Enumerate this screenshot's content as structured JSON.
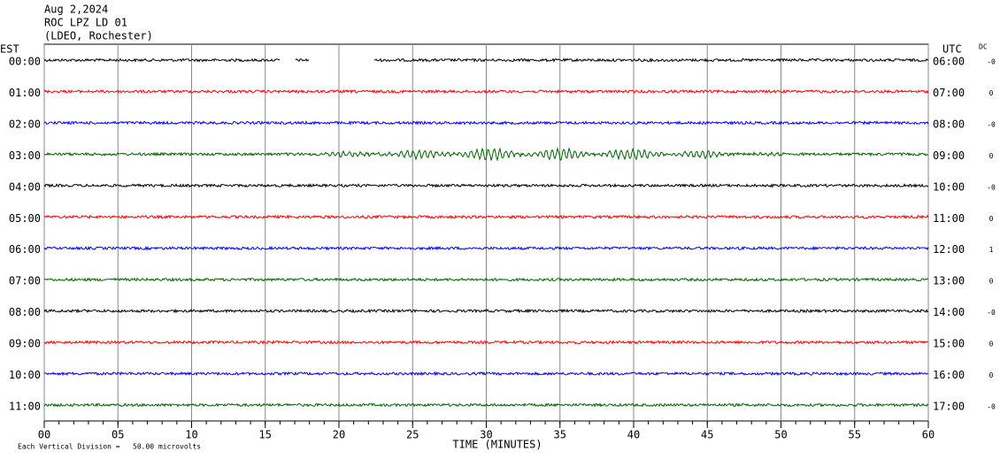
{
  "header": {
    "date": "Aug 2,2024",
    "station": "ROC LPZ LD 01",
    "network": "(LDEO, Rochester)"
  },
  "chart_data": {
    "type": "helicorder",
    "left_axis_label": "EST",
    "right_axis_label": "UTC",
    "dc_label": "DC",
    "x_label": "TIME (MINUTES)",
    "scale_note": "Each Vertical Division =   50.00 microvolts",
    "xlim": [
      0,
      60
    ],
    "xticks": [
      {
        "value": 0,
        "label": "00"
      },
      {
        "value": 5,
        "label": "05"
      },
      10,
      15,
      20,
      25,
      30,
      35,
      40,
      45,
      50,
      55,
      60
    ],
    "grid": true,
    "colors": [
      "#000000",
      "#ff0000",
      "#0000ff",
      "#006400"
    ],
    "rows": [
      {
        "est": "00:00",
        "utc": "06:00",
        "dc": "-0"
      },
      {
        "est": "01:00",
        "utc": "07:00",
        "dc": "0"
      },
      {
        "est": "02:00",
        "utc": "08:00",
        "dc": "-0"
      },
      {
        "est": "03:00",
        "utc": "09:00",
        "dc": "0"
      },
      {
        "est": "04:00",
        "utc": "10:00",
        "dc": "-0"
      },
      {
        "est": "05:00",
        "utc": "11:00",
        "dc": "0"
      },
      {
        "est": "06:00",
        "utc": "12:00",
        "dc": "1"
      },
      {
        "est": "07:00",
        "utc": "13:00",
        "dc": "0"
      },
      {
        "est": "08:00",
        "utc": "14:00",
        "dc": "-0"
      },
      {
        "est": "09:00",
        "utc": "15:00",
        "dc": "0"
      },
      {
        "est": "10:00",
        "utc": "16:00",
        "dc": "0"
      },
      {
        "est": "11:00",
        "utc": "17:00",
        "dc": "-0"
      }
    ]
  }
}
